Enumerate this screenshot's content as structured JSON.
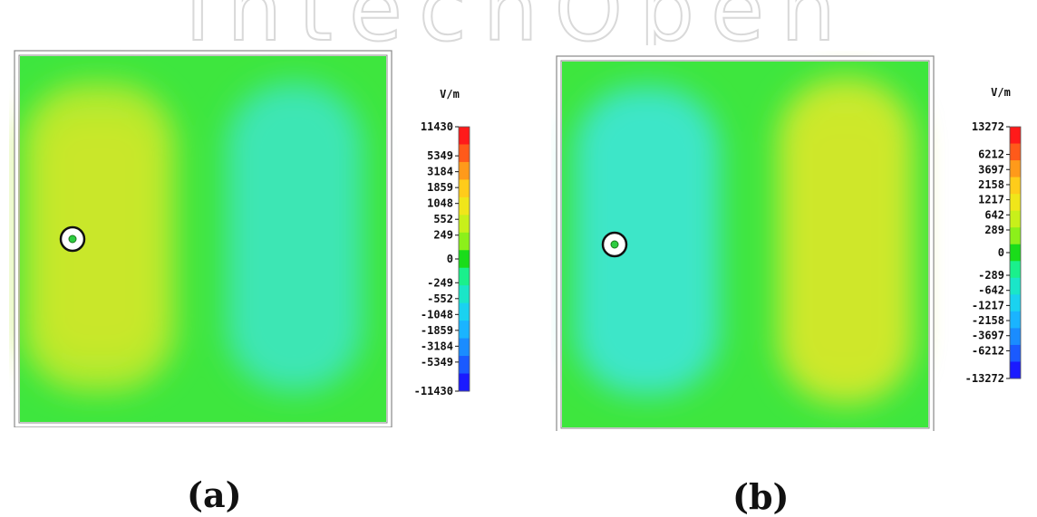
{
  "watermark": {
    "text": "IntechOpen",
    "color": "#d9d9d9"
  },
  "chart_data": [
    {
      "type": "heatmap",
      "title": "",
      "caption": "(a)",
      "unit": "V/m",
      "colorbar": {
        "tick_labels": [
          "11430",
          "5349",
          "3184",
          "1859",
          "1048",
          "552",
          "249",
          "0",
          "-249",
          "-552",
          "-1048",
          "-1859",
          "-3184",
          "-5349",
          "-11430"
        ],
        "values": [
          11430,
          5349,
          3184,
          1859,
          1048,
          552,
          249,
          0,
          -249,
          -552,
          -1048,
          -1859,
          -3184,
          -5349,
          -11430
        ],
        "colors": [
          "#ff1a1a",
          "#ff5a1a",
          "#ff9a1a",
          "#ffcc1a",
          "#f0e61a",
          "#c8f01a",
          "#8cf01a",
          "#1adc1a",
          "#1af08c",
          "#1ae6c8",
          "#1ad2f0",
          "#1ab4ff",
          "#1a8cff",
          "#1a5aff",
          "#1a1aff"
        ]
      },
      "field": {
        "left_region": "positive (yellow-green)",
        "right_region": "negative (cyan)",
        "background_color": "#3ee63e",
        "left_color": "#b4ea2e",
        "right_color": "#3ee6b4"
      },
      "probe_marker": "circle"
    },
    {
      "type": "heatmap",
      "title": "",
      "caption": "(b)",
      "unit": "V/m",
      "colorbar": {
        "tick_labels": [
          "13272",
          "6212",
          "3697",
          "2158",
          "1217",
          "642",
          "289",
          "0",
          "-289",
          "-642",
          "-1217",
          "-2158",
          "-3697",
          "-6212",
          "-13272"
        ],
        "values": [
          13272,
          6212,
          3697,
          2158,
          1217,
          642,
          289,
          0,
          -289,
          -642,
          -1217,
          -2158,
          -3697,
          -6212,
          -13272
        ],
        "colors": [
          "#ff1a1a",
          "#ff5a1a",
          "#ff9a1a",
          "#ffcc1a",
          "#f0e61a",
          "#c8f01a",
          "#8cf01a",
          "#1adc1a",
          "#1af08c",
          "#1ae6c8",
          "#1ad2f0",
          "#1ab4ff",
          "#1a8cff",
          "#1a5aff",
          "#1a1aff"
        ]
      },
      "field": {
        "left_region": "negative (cyan)",
        "right_region": "positive (yellow-green)",
        "background_color": "#3ee63e",
        "left_color": "#3ee6c8",
        "right_color": "#c8ea2e"
      },
      "probe_marker": "circle"
    }
  ]
}
